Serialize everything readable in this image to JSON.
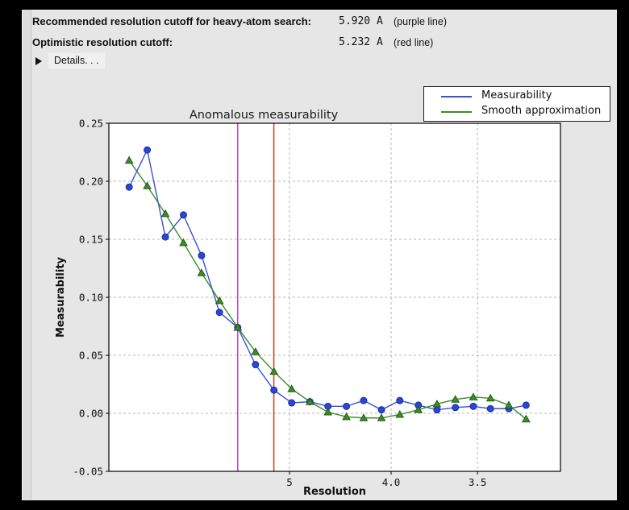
{
  "header": {
    "rows": [
      {
        "label": "Recommended resolution cutoff for heavy-atom search:",
        "value": "5.920 A",
        "note": "(purple line)"
      },
      {
        "label": "Optimistic resolution cutoff:",
        "value": "5.232 A",
        "note": "(red line)"
      }
    ],
    "details_label": "Details. . ."
  },
  "legend": {
    "items": [
      {
        "label": "Measurability",
        "color": "#3a50d9"
      },
      {
        "label": "Smooth approximation",
        "color": "#3c8c28"
      }
    ]
  },
  "chart_data": {
    "type": "line",
    "title": "Anomalous measurability",
    "xlabel": "Resolution",
    "ylabel": "Measurability",
    "x_axis": "resolution in Angstrom, scaled linearly in 1/d^2, reversed (low resolution left)",
    "xlim_inv_d_squared": [
      0.0,
      0.1
    ],
    "ylim": [
      -0.05,
      0.25
    ],
    "grid": true,
    "legend_position": "top-right",
    "x_resolution_A": [
      14.91,
      10.85,
      8.94,
      7.78,
      6.98,
      6.39,
      5.92,
      5.55,
      5.23,
      4.97,
      4.74,
      4.54,
      4.36,
      4.21,
      4.07,
      3.94,
      3.82,
      3.71,
      3.61,
      3.52,
      3.44,
      3.36,
      3.29
    ],
    "series": [
      {
        "name": "Measurability",
        "color": "#3a50d9",
        "marker_color": "#2a46d4",
        "marker_edge": "#1a2f9e",
        "marker": "circle",
        "values": [
          0.195,
          0.227,
          0.152,
          0.171,
          0.136,
          0.087,
          0.074,
          0.042,
          0.02,
          0.009,
          0.01,
          0.006,
          0.006,
          0.011,
          0.003,
          0.011,
          0.007,
          0.003,
          0.005,
          0.006,
          0.004,
          0.004,
          0.007
        ]
      },
      {
        "name": "Smooth approximation",
        "color": "#3c8c28",
        "marker_color": "#3c8c28",
        "marker_edge": "#26591a",
        "marker": "triangle",
        "values": [
          0.218,
          0.196,
          0.172,
          0.147,
          0.121,
          0.097,
          0.074,
          0.053,
          0.036,
          0.021,
          0.01,
          0.001,
          -0.003,
          -0.004,
          -0.004,
          -0.001,
          0.003,
          0.008,
          0.012,
          0.014,
          0.013,
          0.007,
          -0.005
        ]
      }
    ],
    "yticks": [
      {
        "label": "0.25",
        "value": 0.25
      },
      {
        "label": "0.20",
        "value": 0.2
      },
      {
        "label": "0.15",
        "value": 0.15
      },
      {
        "label": "0.10",
        "value": 0.1
      },
      {
        "label": "0.05",
        "value": 0.05
      },
      {
        "label": "0.00",
        "value": 0.0
      },
      {
        "label": "-0.05",
        "value": -0.05
      }
    ],
    "xticks": [
      {
        "label": "5",
        "d": 5.0
      },
      {
        "label": "4.0",
        "d": 4.0
      },
      {
        "label": "3.5",
        "d": 3.5
      }
    ],
    "vlines": [
      {
        "name": "recommended-cutoff-purple-line",
        "d": 5.92,
        "color": "#c444c8"
      },
      {
        "name": "optimistic-cutoff-red-line",
        "d": 5.232,
        "color": "#c2451c"
      }
    ],
    "colors": {
      "plot_bg": "#ffffff",
      "grid": "#b5b5b5",
      "spine": "#000000",
      "panel_bg": "#e6e6e6"
    }
  }
}
